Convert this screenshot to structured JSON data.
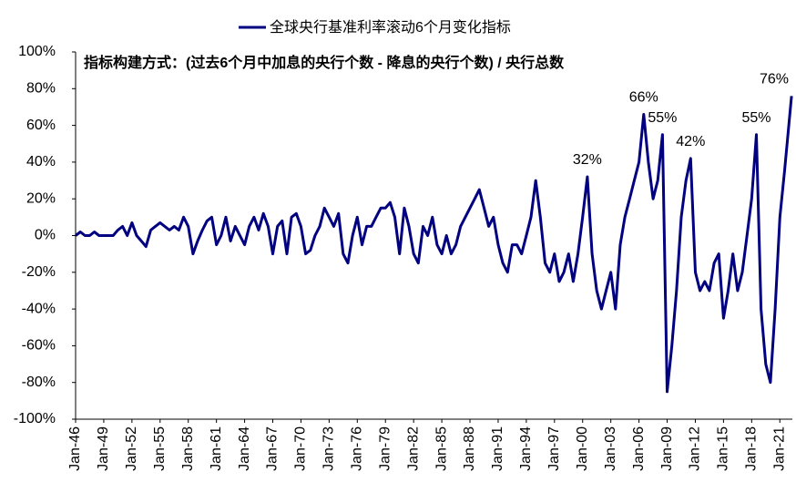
{
  "chart_data": {
    "type": "line",
    "legend_label": "全球央行基准利率滚动6个月变化指标",
    "subtitle": "指标构建方式：(过去6个月中加息的央行个数 - 降息的央行个数) / 央行总数",
    "xlim": [
      "1946-01",
      "2022-05"
    ],
    "ylim": [
      -100,
      100
    ],
    "yticks": [
      {
        "value": 100,
        "label": "100%"
      },
      {
        "value": 80,
        "label": "80%"
      },
      {
        "value": 60,
        "label": "60%"
      },
      {
        "value": 40,
        "label": "40%"
      },
      {
        "value": 20,
        "label": "20%"
      },
      {
        "value": 0,
        "label": "0%"
      },
      {
        "value": -20,
        "label": "-20%"
      },
      {
        "value": -40,
        "label": "-40%"
      },
      {
        "value": -60,
        "label": "-60%"
      },
      {
        "value": -80,
        "label": "-80%"
      },
      {
        "value": -100,
        "label": "-100%"
      }
    ],
    "negative_tick_color": "#ff0000",
    "xticks": [
      {
        "value": "1946-01",
        "label": "Jan-46"
      },
      {
        "value": "1949-01",
        "label": "Jan-49"
      },
      {
        "value": "1952-01",
        "label": "Jan-52"
      },
      {
        "value": "1955-01",
        "label": "Jan-55"
      },
      {
        "value": "1958-01",
        "label": "Jan-58"
      },
      {
        "value": "1961-01",
        "label": "Jan-61"
      },
      {
        "value": "1964-01",
        "label": "Jan-64"
      },
      {
        "value": "1967-01",
        "label": "Jan-67"
      },
      {
        "value": "1970-01",
        "label": "Jan-70"
      },
      {
        "value": "1973-01",
        "label": "Jan-73"
      },
      {
        "value": "1976-01",
        "label": "Jan-76"
      },
      {
        "value": "1979-01",
        "label": "Jan-79"
      },
      {
        "value": "1982-01",
        "label": "Jan-82"
      },
      {
        "value": "1985-01",
        "label": "Jan-85"
      },
      {
        "value": "1988-01",
        "label": "Jan-88"
      },
      {
        "value": "1991-01",
        "label": "Jan-91"
      },
      {
        "value": "1994-01",
        "label": "Jan-94"
      },
      {
        "value": "1997-01",
        "label": "Jan-97"
      },
      {
        "value": "2000-01",
        "label": "Jan-00"
      },
      {
        "value": "2003-01",
        "label": "Jan-03"
      },
      {
        "value": "2006-01",
        "label": "Jan-06"
      },
      {
        "value": "2009-01",
        "label": "Jan-09"
      },
      {
        "value": "2012-01",
        "label": "Jan-12"
      },
      {
        "value": "2015-01",
        "label": "Jan-15"
      },
      {
        "value": "2018-01",
        "label": "Jan-18"
      },
      {
        "value": "2021-01",
        "label": "Jan-21"
      }
    ],
    "color": "#000080",
    "x": [
      "1946-01",
      "1946-07",
      "1947-01",
      "1947-07",
      "1948-01",
      "1948-07",
      "1949-01",
      "1949-07",
      "1950-01",
      "1950-07",
      "1951-01",
      "1951-07",
      "1952-01",
      "1952-07",
      "1953-01",
      "1953-07",
      "1954-01",
      "1954-07",
      "1955-01",
      "1955-07",
      "1956-01",
      "1956-07",
      "1957-01",
      "1957-07",
      "1958-01",
      "1958-07",
      "1959-01",
      "1959-07",
      "1960-01",
      "1960-07",
      "1961-01",
      "1961-07",
      "1962-01",
      "1962-07",
      "1963-01",
      "1963-07",
      "1964-01",
      "1964-07",
      "1965-01",
      "1965-07",
      "1966-01",
      "1966-07",
      "1967-01",
      "1967-07",
      "1968-01",
      "1968-07",
      "1969-01",
      "1969-07",
      "1970-01",
      "1970-07",
      "1971-01",
      "1971-07",
      "1972-01",
      "1972-07",
      "1973-01",
      "1973-07",
      "1974-01",
      "1974-07",
      "1975-01",
      "1975-07",
      "1976-01",
      "1976-07",
      "1977-01",
      "1977-07",
      "1978-01",
      "1978-07",
      "1979-01",
      "1979-07",
      "1980-01",
      "1980-07",
      "1981-01",
      "1981-07",
      "1982-01",
      "1982-07",
      "1983-01",
      "1983-07",
      "1984-01",
      "1984-07",
      "1985-01",
      "1985-07",
      "1986-01",
      "1986-07",
      "1987-01",
      "1987-07",
      "1988-01",
      "1988-07",
      "1989-01",
      "1989-07",
      "1990-01",
      "1990-07",
      "1991-01",
      "1991-07",
      "1992-01",
      "1992-07",
      "1993-01",
      "1993-07",
      "1994-01",
      "1994-07",
      "1995-01",
      "1995-07",
      "1996-01",
      "1996-07",
      "1997-01",
      "1997-07",
      "1998-01",
      "1998-07",
      "1999-01",
      "1999-07",
      "2000-01",
      "2000-07",
      "2001-01",
      "2001-07",
      "2002-01",
      "2002-07",
      "2003-01",
      "2003-07",
      "2004-01",
      "2004-07",
      "2005-01",
      "2005-07",
      "2006-01",
      "2006-07",
      "2007-01",
      "2007-07",
      "2008-01",
      "2008-07",
      "2009-01",
      "2009-07",
      "2010-01",
      "2010-07",
      "2011-01",
      "2011-07",
      "2012-01",
      "2012-07",
      "2013-01",
      "2013-07",
      "2014-01",
      "2014-07",
      "2015-01",
      "2015-07",
      "2016-01",
      "2016-07",
      "2017-01",
      "2017-07",
      "2018-01",
      "2018-07",
      "2019-01",
      "2019-07",
      "2020-01",
      "2020-07",
      "2021-01",
      "2021-07",
      "2022-04"
    ],
    "values": [
      0,
      2,
      0,
      0,
      2,
      0,
      0,
      0,
      0,
      3,
      5,
      0,
      7,
      0,
      -3,
      -6,
      3,
      5,
      7,
      5,
      3,
      5,
      3,
      10,
      5,
      -10,
      -3,
      3,
      8,
      10,
      -5,
      0,
      10,
      -3,
      5,
      0,
      -5,
      5,
      10,
      3,
      12,
      5,
      -10,
      5,
      8,
      -10,
      10,
      12,
      5,
      -10,
      -8,
      0,
      5,
      15,
      10,
      5,
      12,
      -10,
      -15,
      0,
      10,
      -5,
      5,
      5,
      10,
      15,
      15,
      18,
      10,
      -10,
      15,
      5,
      -10,
      -15,
      5,
      0,
      10,
      -5,
      -10,
      0,
      -10,
      -5,
      5,
      10,
      15,
      20,
      25,
      15,
      5,
      10,
      -5,
      -15,
      -20,
      -5,
      -5,
      -10,
      0,
      10,
      30,
      10,
      -15,
      -20,
      -10,
      -25,
      -20,
      -10,
      -25,
      -10,
      10,
      32,
      -10,
      -30,
      -40,
      -30,
      -20,
      -40,
      -5,
      10,
      20,
      30,
      40,
      66,
      40,
      20,
      30,
      55,
      -85,
      -60,
      -30,
      10,
      30,
      42,
      -20,
      -30,
      -25,
      -30,
      -15,
      -10,
      -45,
      -30,
      -10,
      -30,
      -20,
      0,
      20,
      55,
      -40,
      -70,
      -80,
      -40,
      10,
      35,
      76
    ],
    "annotations": [
      {
        "label": "32%",
        "x": "2000-07",
        "value": 32
      },
      {
        "label": "66%",
        "x": "2006-07",
        "value": 66
      },
      {
        "label": "55%",
        "x": "2008-07",
        "value": 55
      },
      {
        "label": "42%",
        "x": "2011-07",
        "value": 42
      },
      {
        "label": "55%",
        "x": "2018-07",
        "value": 55
      },
      {
        "label": "76%",
        "x": "2022-04",
        "value": 76
      }
    ]
  }
}
